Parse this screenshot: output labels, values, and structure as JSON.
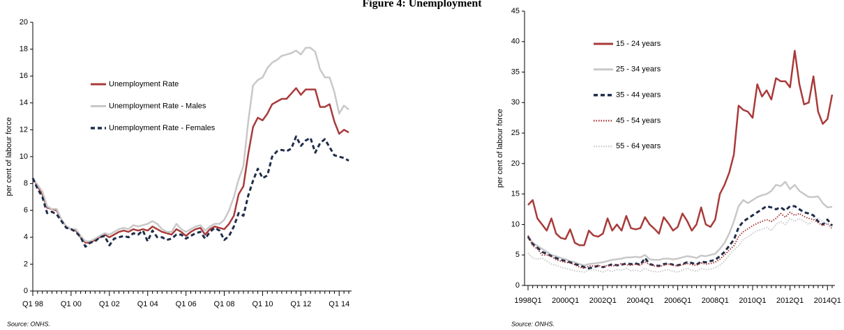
{
  "title": "Figure 4: Unemployment",
  "chart_data": [
    {
      "type": "line",
      "y_label": "per cent of labour force",
      "source": "Source: ONHS.",
      "legend": "middle left",
      "categories": [
        "Q1 98",
        null,
        null,
        null,
        null,
        null,
        null,
        null,
        "Q1 00",
        null,
        null,
        null,
        null,
        null,
        null,
        null,
        "Q1 02",
        null,
        null,
        null,
        null,
        null,
        null,
        null,
        "Q1 04",
        null,
        null,
        null,
        null,
        null,
        null,
        null,
        "Q1 06",
        null,
        null,
        null,
        null,
        null,
        null,
        null,
        "Q1 08",
        null,
        null,
        null,
        null,
        null,
        null,
        null,
        "Q1 10",
        null,
        null,
        null,
        null,
        null,
        null,
        null,
        "Q1 12",
        null,
        null,
        null,
        null,
        null,
        null,
        null,
        "Q1 14",
        null,
        null
      ],
      "ylim": [
        0,
        20
      ],
      "yticks": [
        0,
        2,
        4,
        6,
        8,
        10,
        12,
        14,
        16,
        18,
        20
      ],
      "series": [
        {
          "name": "Unemployment Rate",
          "color": "#a93a3a",
          "style": "solid",
          "values": [
            8.4,
            7.8,
            7.2,
            6.2,
            6.1,
            6.0,
            5.3,
            4.8,
            4.6,
            4.5,
            4.0,
            3.6,
            3.6,
            3.8,
            4.0,
            4.2,
            4.0,
            4.2,
            4.4,
            4.5,
            4.4,
            4.6,
            4.5,
            4.6,
            4.5,
            4.8,
            4.6,
            4.4,
            4.3,
            4.2,
            4.6,
            4.4,
            4.1,
            4.4,
            4.6,
            4.7,
            4.2,
            4.6,
            4.8,
            4.7,
            4.6,
            5.0,
            5.6,
            7.2,
            7.8,
            10.2,
            12.2,
            12.9,
            12.7,
            13.2,
            13.9,
            14.1,
            14.3,
            14.3,
            14.7,
            15.1,
            14.6,
            15.0,
            15.0,
            15.0,
            13.7,
            13.7,
            13.9,
            12.6,
            11.7,
            12.0,
            11.8
          ]
        },
        {
          "name": "Unemployment Rate - Males",
          "color": "#c8c8c8",
          "style": "solid",
          "values": [
            8.4,
            7.9,
            7.4,
            6.3,
            6.1,
            6.1,
            5.3,
            4.8,
            4.6,
            4.6,
            4.1,
            3.7,
            3.7,
            3.9,
            4.1,
            4.3,
            4.2,
            4.4,
            4.6,
            4.7,
            4.6,
            4.9,
            4.8,
            4.9,
            5.0,
            5.2,
            5.0,
            4.6,
            4.4,
            4.4,
            5.0,
            4.6,
            4.4,
            4.6,
            4.8,
            4.9,
            4.5,
            4.8,
            5.0,
            5.0,
            5.3,
            6.0,
            7.0,
            8.3,
            9.3,
            12.6,
            15.3,
            15.7,
            15.9,
            16.6,
            17.0,
            17.2,
            17.5,
            17.6,
            17.7,
            17.9,
            17.6,
            18.1,
            18.1,
            17.8,
            16.5,
            15.9,
            15.9,
            14.8,
            13.2,
            13.8,
            13.5
          ]
        },
        {
          "name": "Unemployment Rate - Females",
          "color": "#1f2d4a",
          "style": "dashed",
          "values": [
            8.4,
            7.6,
            7.0,
            5.8,
            5.9,
            5.7,
            5.2,
            4.7,
            4.6,
            4.4,
            4.0,
            3.3,
            3.6,
            3.7,
            4.0,
            4.1,
            3.4,
            3.9,
            4.0,
            4.1,
            4.0,
            4.3,
            4.2,
            4.5,
            3.7,
            4.5,
            4.0,
            4.0,
            3.8,
            3.9,
            4.2,
            4.2,
            3.9,
            4.1,
            4.3,
            4.4,
            3.9,
            4.4,
            4.7,
            4.5,
            3.8,
            4.1,
            4.8,
            5.8,
            5.6,
            7.1,
            8.2,
            9.1,
            8.4,
            8.6,
            10.0,
            10.4,
            10.5,
            10.4,
            10.6,
            11.5,
            10.8,
            11.2,
            11.4,
            10.3,
            11.0,
            11.3,
            10.7,
            10.1,
            10.0,
            9.9,
            9.7
          ]
        }
      ]
    },
    {
      "type": "line",
      "y_label": "per cent of labour force",
      "source": "Source: ONHS.",
      "legend": "upper left",
      "categories": [
        "1998Q1",
        null,
        null,
        null,
        null,
        null,
        null,
        null,
        "2000Q1",
        null,
        null,
        null,
        null,
        null,
        null,
        null,
        "2002Q1",
        null,
        null,
        null,
        null,
        null,
        null,
        null,
        "2004Q1",
        null,
        null,
        null,
        null,
        null,
        null,
        null,
        "2006Q1",
        null,
        null,
        null,
        null,
        null,
        null,
        null,
        "2008Q1",
        null,
        null,
        null,
        null,
        null,
        null,
        null,
        "2010Q1",
        null,
        null,
        null,
        null,
        null,
        null,
        null,
        "2012Q1",
        null,
        null,
        null,
        null,
        null,
        null,
        null,
        "2014Q1",
        null
      ],
      "ylim": [
        0,
        45
      ],
      "yticks": [
        0,
        5,
        10,
        15,
        20,
        25,
        30,
        35,
        40,
        45
      ],
      "series": [
        {
          "name": "15 - 24 years",
          "color": "#a93a3a",
          "style": "solid",
          "values": [
            13.2,
            14.0,
            11.0,
            10.0,
            9.0,
            11.0,
            8.5,
            7.8,
            7.6,
            9.2,
            7.0,
            6.6,
            6.6,
            9.0,
            8.2,
            8.0,
            8.5,
            11.0,
            9.0,
            10.0,
            9.0,
            11.4,
            9.4,
            9.2,
            9.4,
            11.2,
            10.0,
            9.3,
            8.5,
            11.2,
            10.2,
            9.0,
            9.6,
            11.8,
            10.6,
            9.0,
            10.0,
            12.8,
            10.0,
            9.6,
            10.8,
            15.0,
            16.5,
            18.5,
            21.5,
            29.5,
            28.8,
            28.5,
            27.5,
            33.0,
            31.0,
            32.0,
            30.5,
            34.0,
            33.5,
            33.5,
            32.5,
            38.5,
            33.0,
            29.7,
            30.0,
            34.3,
            28.5,
            26.5,
            27.3,
            31.3
          ]
        },
        {
          "name": "25 - 34 years",
          "color": "#c8c8c8",
          "style": "solid",
          "values": [
            8.0,
            7.0,
            6.5,
            6.0,
            5.5,
            5.0,
            4.8,
            4.5,
            4.3,
            4.0,
            3.8,
            3.5,
            3.3,
            3.5,
            3.6,
            3.7,
            3.8,
            4.0,
            4.2,
            4.3,
            4.4,
            4.6,
            4.6,
            4.7,
            4.6,
            5.0,
            4.3,
            4.2,
            4.2,
            4.4,
            4.4,
            4.3,
            4.4,
            4.6,
            4.8,
            4.7,
            4.5,
            4.9,
            4.8,
            5.0,
            5.2,
            6.0,
            7.0,
            8.5,
            10.5,
            13.0,
            14.0,
            13.5,
            14.0,
            14.5,
            14.8,
            15.0,
            15.5,
            16.5,
            16.3,
            17.0,
            15.8,
            16.5,
            15.5,
            15.0,
            14.5,
            14.5,
            14.6,
            13.5,
            12.8,
            12.9
          ]
        },
        {
          "name": "35 - 44 years",
          "color": "#1f2d4a",
          "style": "dashed",
          "values": [
            8.0,
            6.8,
            6.2,
            5.5,
            5.2,
            4.8,
            4.5,
            4.2,
            4.0,
            3.8,
            3.5,
            3.3,
            3.0,
            2.8,
            3.0,
            3.2,
            3.0,
            3.2,
            3.5,
            3.3,
            3.4,
            3.6,
            3.5,
            3.6,
            3.4,
            4.5,
            3.5,
            3.3,
            3.2,
            3.5,
            3.6,
            3.4,
            3.3,
            3.5,
            3.8,
            3.7,
            3.4,
            3.9,
            3.8,
            4.0,
            4.2,
            4.8,
            5.5,
            6.5,
            7.5,
            9.5,
            10.5,
            11.0,
            11.5,
            12.0,
            12.5,
            13.0,
            12.8,
            12.5,
            12.8,
            12.3,
            13.0,
            13.0,
            12.5,
            12.0,
            11.8,
            11.5,
            10.5,
            10.0,
            10.8,
            9.8
          ]
        },
        {
          "name": "45 - 54 years",
          "color": "#a93a3a",
          "style": "dotted",
          "values": [
            8.2,
            6.5,
            6.0,
            5.0,
            5.0,
            4.8,
            4.2,
            4.0,
            3.8,
            3.7,
            3.4,
            3.0,
            2.8,
            3.2,
            3.2,
            3.3,
            3.0,
            3.3,
            3.2,
            3.3,
            3.6,
            3.4,
            3.3,
            3.5,
            3.3,
            3.9,
            3.4,
            3.2,
            3.1,
            3.3,
            3.5,
            3.3,
            3.2,
            3.4,
            3.6,
            3.4,
            3.3,
            3.7,
            3.5,
            3.6,
            3.8,
            4.3,
            5.0,
            5.8,
            6.5,
            8.0,
            8.8,
            9.3,
            9.8,
            10.2,
            10.5,
            10.8,
            10.5,
            11.0,
            11.8,
            11.2,
            12.0,
            11.5,
            11.8,
            11.3,
            11.0,
            10.8,
            10.3,
            9.8,
            10.2,
            9.3
          ]
        },
        {
          "name": "55 - 64 years",
          "color": "#c8c8c8",
          "style": "dotted",
          "values": [
            5.3,
            4.5,
            4.3,
            4.5,
            4.0,
            3.5,
            3.3,
            3.0,
            2.8,
            2.6,
            2.4,
            2.3,
            2.2,
            2.5,
            2.6,
            2.4,
            2.2,
            2.5,
            2.3,
            2.6,
            2.5,
            2.8,
            2.4,
            2.5,
            2.3,
            2.8,
            2.4,
            2.3,
            2.2,
            2.5,
            2.6,
            2.3,
            2.2,
            2.5,
            2.8,
            2.5,
            2.3,
            2.8,
            2.6,
            2.7,
            2.9,
            3.3,
            4.0,
            5.0,
            5.8,
            6.5,
            7.5,
            8.0,
            8.5,
            9.0,
            9.2,
            9.5,
            9.0,
            10.0,
            10.5,
            10.0,
            11.0,
            10.5,
            11.0,
            10.5,
            10.0,
            10.8,
            11.0,
            10.5,
            10.0,
            9.5
          ]
        }
      ]
    }
  ]
}
